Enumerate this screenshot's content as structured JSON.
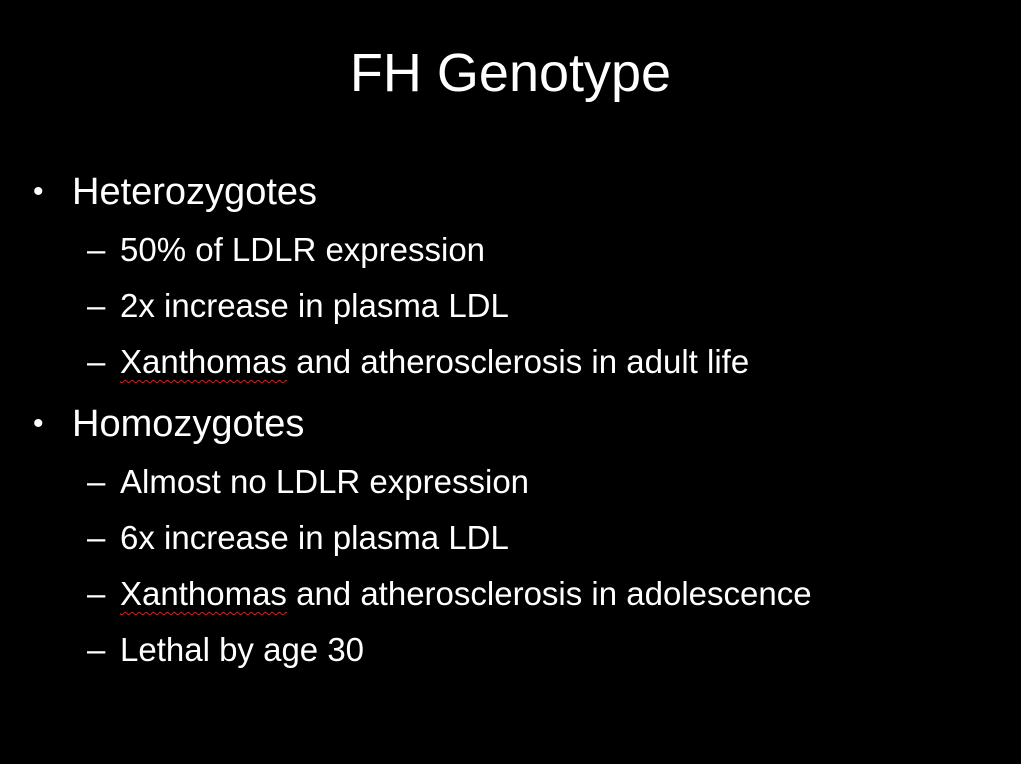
{
  "slide": {
    "title": "FH Genotype",
    "bullet_symbol": "•",
    "sub_symbol": "–",
    "groups": [
      {
        "label": "Heterozygotes",
        "items": [
          {
            "text": "50% of LDLR expression"
          },
          {
            "text": "2x increase in plasma LDL"
          },
          {
            "prefix": "Xanthomas",
            "text": " and atherosclerosis in adult life"
          }
        ]
      },
      {
        "label": "Homozygotes",
        "items": [
          {
            "text": "Almost no LDLR expression"
          },
          {
            "text": "6x increase in plasma LDL"
          },
          {
            "prefix": "Xanthomas",
            "text": " and atherosclerosis in adolescence"
          },
          {
            "text": "Lethal by age 30"
          }
        ]
      }
    ]
  },
  "colors": {
    "background": "#000000",
    "text": "#ffffff",
    "spellcheck_underline": "#d02020"
  }
}
